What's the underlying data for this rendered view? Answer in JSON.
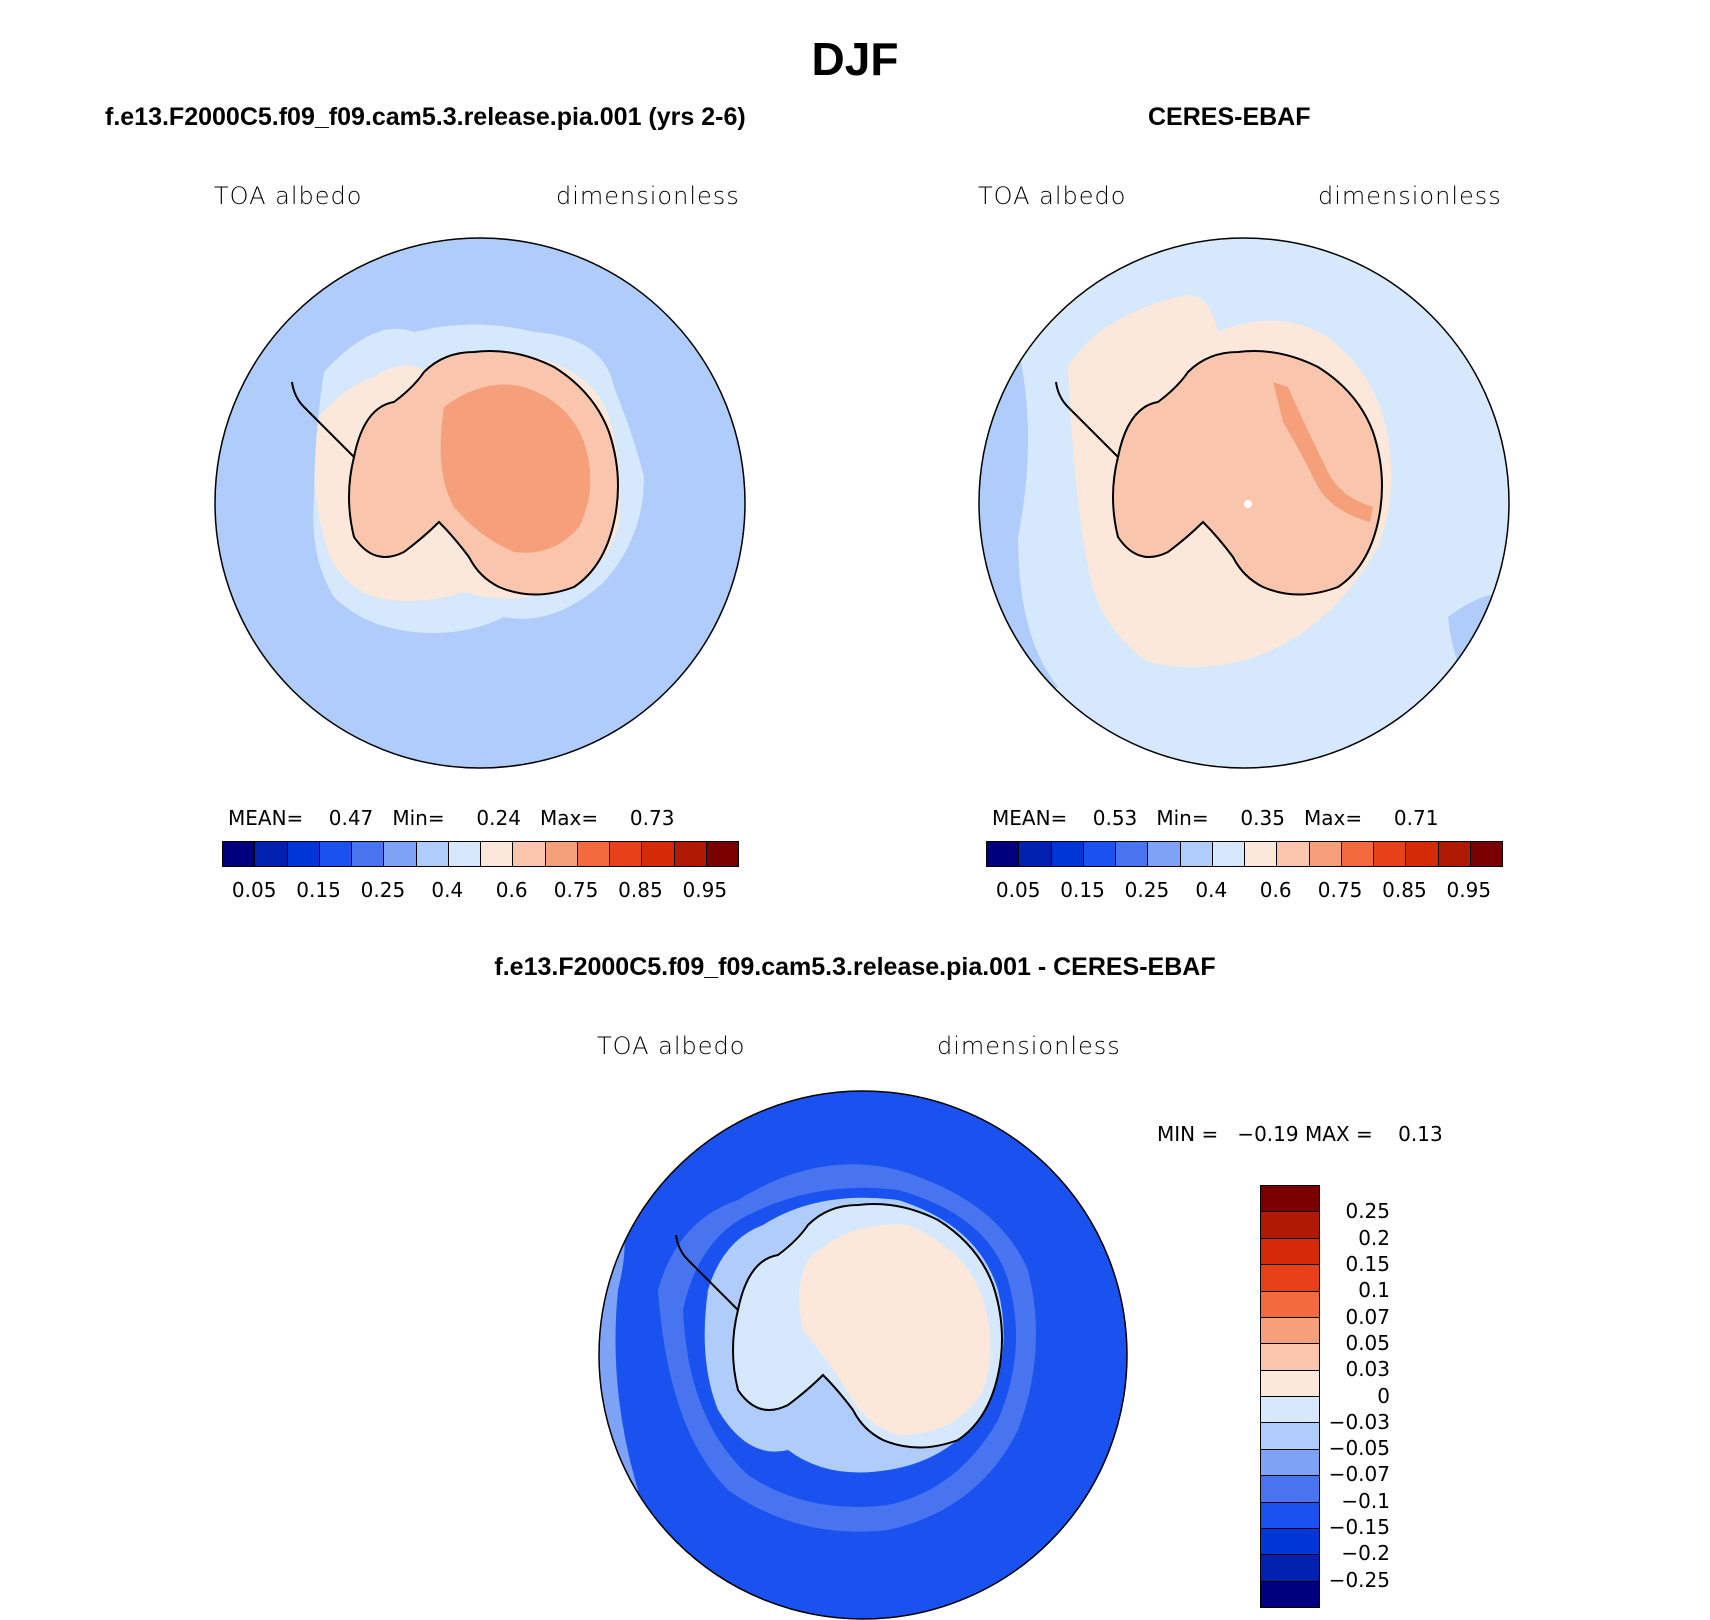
{
  "title": "DJF",
  "panels": {
    "model": {
      "title": "f.e13.F2000C5.f09_f09.cam5.3.release.pia.001 (yrs 2-6)",
      "variable": "TOA albedo",
      "units": "dimensionless",
      "mean_label": "MEAN=",
      "mean": "0.47",
      "min_label": "Min=",
      "min": "0.24",
      "max_label": "Max=",
      "max": "0.73"
    },
    "obs": {
      "title": "CERES-EBAF",
      "variable": "TOA albedo",
      "units": "dimensionless",
      "mean_label": "MEAN=",
      "mean": "0.53",
      "min_label": "Min=",
      "min": "0.35",
      "max_label": "Max=",
      "max": "0.71"
    },
    "diff": {
      "title": "f.e13.F2000C5.f09_f09.cam5.3.release.pia.001 - CERES-EBAF",
      "variable": "TOA albedo",
      "units": "dimensionless",
      "min_label": "MIN =",
      "min": "−0.19",
      "max_label": "MAX =",
      "max": "0.13"
    }
  },
  "colorbar_abs": {
    "colors": [
      "#00007f",
      "#0020b0",
      "#0036d8",
      "#1a52f0",
      "#4874f0",
      "#7ea2f5",
      "#b0ccfa",
      "#d6e8fb",
      "#fce8da",
      "#f9c6ad",
      "#f5a07a",
      "#f26a3e",
      "#e84018",
      "#d42a06",
      "#b01a04",
      "#7a0000"
    ],
    "labels": [
      "0.05",
      "0.15",
      "0.25",
      "0.4",
      "0.6",
      "0.75",
      "0.85",
      "0.95"
    ]
  },
  "colorbar_diff": {
    "colors": [
      "#7a0000",
      "#b01a04",
      "#d42a06",
      "#e84018",
      "#f26a3e",
      "#f5a07a",
      "#f9c6ad",
      "#fce8da",
      "#d6e8fb",
      "#b0ccfa",
      "#7ea2f5",
      "#4874f0",
      "#1a52f0",
      "#0036d8",
      "#0020b0",
      "#00007f"
    ],
    "labels": [
      "0.25",
      "0.2",
      "0.15",
      "0.1",
      "0.07",
      "0.05",
      "0.03",
      "0",
      "−0.03",
      "−0.05",
      "−0.07",
      "−0.1",
      "−0.15",
      "−0.2",
      "−0.25"
    ]
  },
  "map_colors": {
    "model_ocean": "#b0ccfa",
    "model_seaice": "#d6e8fb",
    "model_coast": "#fce8da",
    "model_land": "#f9c6ad",
    "model_interior": "#f5a07a",
    "obs_ocean": "#d6e8fb",
    "obs_edge": "#b0ccfa",
    "obs_ring": "#fce8da",
    "obs_land": "#f9c6ad",
    "obs_ridge": "#f5a07a",
    "diff_ocean": "#1a52f0",
    "diff_mid": "#4874f0",
    "diff_light": "#7ea2f5",
    "diff_near": "#b0ccfa",
    "diff_land": "#fce8da",
    "diff_coast": "#d6e8fb"
  }
}
